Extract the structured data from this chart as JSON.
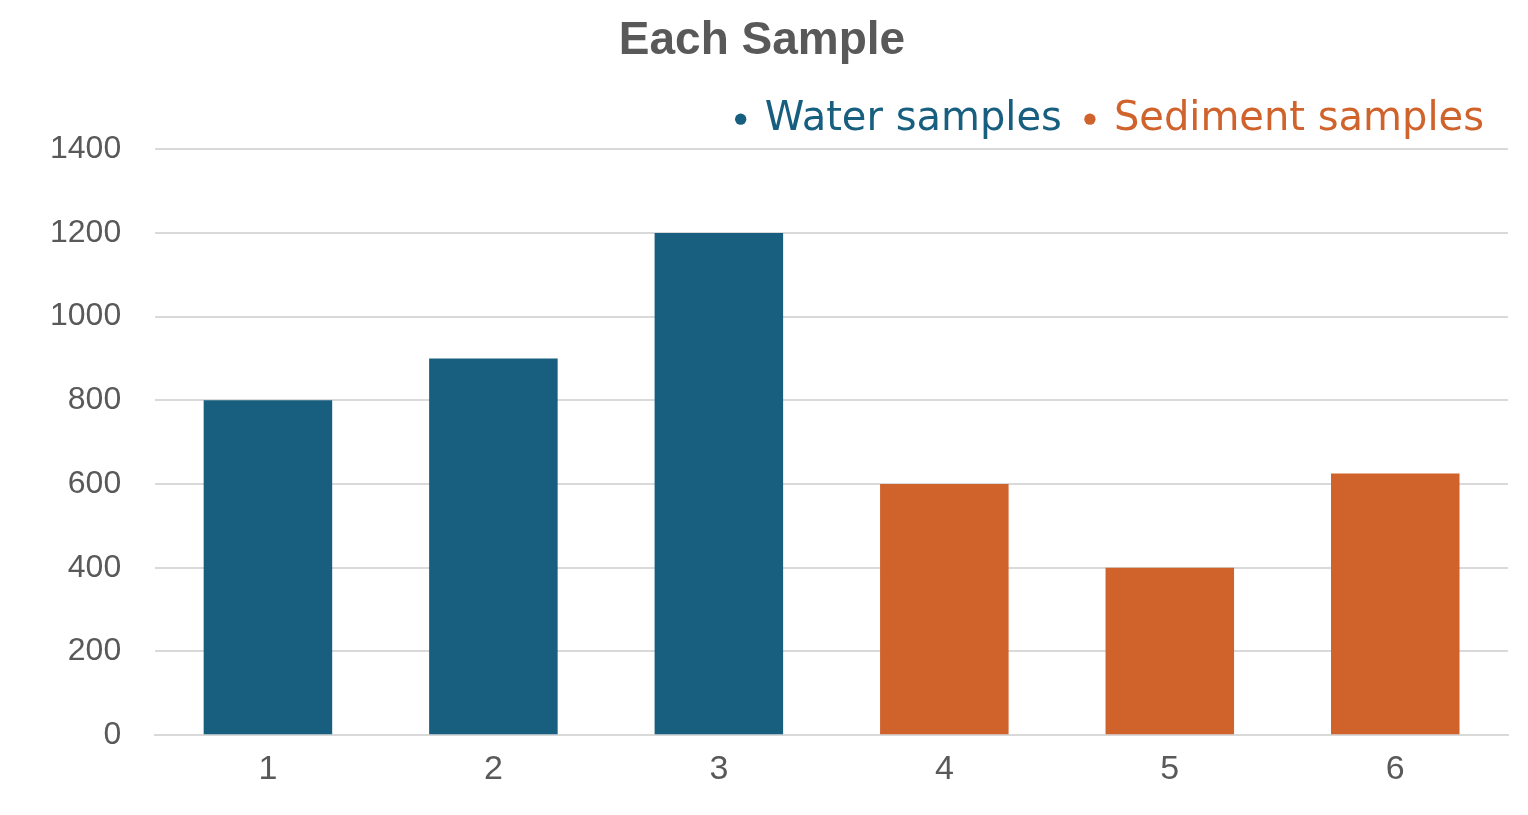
{
  "chart_data": {
    "type": "bar",
    "title": "Each Sample",
    "categories": [
      "1",
      "2",
      "3",
      "4",
      "5",
      "6"
    ],
    "series": [
      {
        "name": "Water samples",
        "color": "#175e7f",
        "values": [
          800,
          900,
          1200,
          null,
          null,
          null
        ]
      },
      {
        "name": "Sediment samples",
        "color": "#d0622c",
        "values": [
          null,
          null,
          null,
          600,
          400,
          625
        ]
      }
    ],
    "ylim": [
      0,
      1400
    ],
    "yticks": [
      0,
      200,
      400,
      600,
      800,
      1000,
      1200,
      1400
    ],
    "grid": "y",
    "legend": "top right"
  }
}
